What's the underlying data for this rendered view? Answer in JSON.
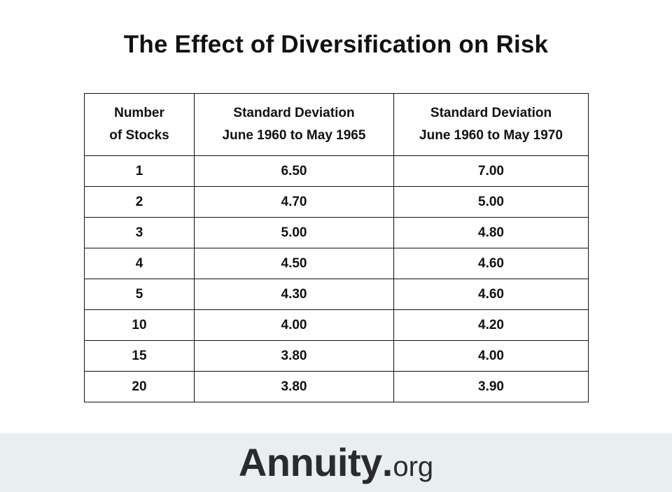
{
  "title": "The Effect of Diversification on Risk",
  "table": {
    "headers": [
      [
        "Number",
        "of Stocks"
      ],
      [
        "Standard Deviation",
        "June 1960 to May 1965"
      ],
      [
        "Standard Deviation",
        "June 1960 to May 1970"
      ]
    ],
    "rows": [
      [
        "1",
        "6.50",
        "7.00"
      ],
      [
        "2",
        "4.70",
        "5.00"
      ],
      [
        "3",
        "5.00",
        "4.80"
      ],
      [
        "4",
        "4.50",
        "4.60"
      ],
      [
        "5",
        "4.30",
        "4.60"
      ],
      [
        "10",
        "4.00",
        "4.20"
      ],
      [
        "15",
        "3.80",
        "4.00"
      ],
      [
        "20",
        "3.80",
        "3.90"
      ]
    ]
  },
  "chart_data": {
    "type": "table",
    "title": "The Effect of Diversification on Risk",
    "columns": [
      "Number of Stocks",
      "Standard Deviation June 1960 to May 1965",
      "Standard Deviation June 1960 to May 1970"
    ],
    "x": [
      1,
      2,
      3,
      4,
      5,
      10,
      15,
      20
    ],
    "series": [
      {
        "name": "Standard Deviation June 1960 to May 1965",
        "values": [
          6.5,
          4.7,
          5.0,
          4.5,
          4.3,
          4.0,
          3.8,
          3.8
        ]
      },
      {
        "name": "Standard Deviation June 1960 to May 1970",
        "values": [
          7.0,
          5.0,
          4.8,
          4.6,
          4.6,
          4.2,
          4.0,
          3.9
        ]
      }
    ]
  },
  "logo": {
    "main": "Annuity",
    "dot": ".",
    "suffix": "org"
  },
  "colors": {
    "footer_background": "#e9eef0",
    "text": "#111111",
    "logo": "#2b2b2b"
  }
}
